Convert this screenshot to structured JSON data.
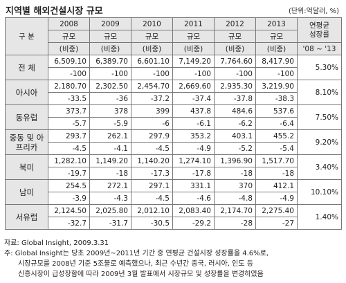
{
  "title": "지역별 해외건설시장 규모",
  "unit": "(단위:억달러, %)",
  "header": {
    "label": "구 분",
    "years": [
      "2008",
      "2009",
      "2010",
      "2011",
      "2012",
      "2013"
    ],
    "growth": [
      "연평균",
      "성장률"
    ],
    "size": "규모",
    "share": "(비중)",
    "period": "'08 ~ '13"
  },
  "rows": [
    {
      "region": "전 체",
      "size": [
        "6,509.10",
        "6,389.70",
        "6,601.10",
        "7,149.20",
        "7,764.60",
        "8,417.90"
      ],
      "share": [
        "-100",
        "-100",
        "-100",
        "-100",
        "-100",
        "-100"
      ],
      "growth": "5.30%"
    },
    {
      "region": "아시아",
      "size": [
        "2,180.70",
        "2,302.50",
        "2,454.70",
        "2,669.60",
        "2,935.30",
        "3,219.90"
      ],
      "share": [
        "-33.5",
        "-36",
        "-37.2",
        "-37.4",
        "-37.8",
        "-38.3"
      ],
      "growth": "8.10%"
    },
    {
      "region": "동유럽",
      "size": [
        "373.7",
        "378",
        "399",
        "437.8",
        "484.6",
        "537.6"
      ],
      "share": [
        "-5.7",
        "-5.9",
        "-6",
        "-6.1",
        "-6.2",
        "-6.4"
      ],
      "growth": "7.50%"
    },
    {
      "region": "중동 및 아프리카",
      "size": [
        "293.7",
        "262.1",
        "297.9",
        "353.2",
        "403.1",
        "455.2"
      ],
      "share": [
        "-4.5",
        "-4.1",
        "-4.5",
        "-4.9",
        "-5.2",
        "-5.4"
      ],
      "growth": "9.20%"
    },
    {
      "region": "북미",
      "size": [
        "1,282.10",
        "1,149.20",
        "1,140.20",
        "1,274.10",
        "1,396.90",
        "1,517.70"
      ],
      "share": [
        "-19.7",
        "-18",
        "-17.3",
        "-17.8",
        "-18",
        "-18"
      ],
      "growth": "3.40%"
    },
    {
      "region": "남미",
      "size": [
        "254.5",
        "272.1",
        "297.1",
        "331.1",
        "370",
        "412.1"
      ],
      "share": [
        "-3.9",
        "-4.3",
        "-4.5",
        "-4.6",
        "-4.8",
        "-4.9"
      ],
      "growth": "10.10%"
    },
    {
      "region": "서유럽",
      "size": [
        "2,124.50",
        "2,025.80",
        "2,012.10",
        "2,083.40",
        "2,174.70",
        "2,275.40"
      ],
      "share": [
        "-32.7",
        "-31.7",
        "-30.5",
        "-29.2",
        "-28",
        "-27"
      ],
      "growth": "1.40%"
    }
  ],
  "source": "자료: Global Insight, 2009.3.31",
  "note": [
    "주: Global Insight는 당초 2009년~2011년 기간 중 연평균 건설시장 성장률을 4.6%로,",
    "시장규모를 2008년 기준 5조불로 예측했으나, 최근 수년간 중국, 러시아, 인도 등",
    "신흥시장이 급성장함에 따라 2009년 3월 발표에서 시장규모 및 성장률을 변경하였음"
  ]
}
